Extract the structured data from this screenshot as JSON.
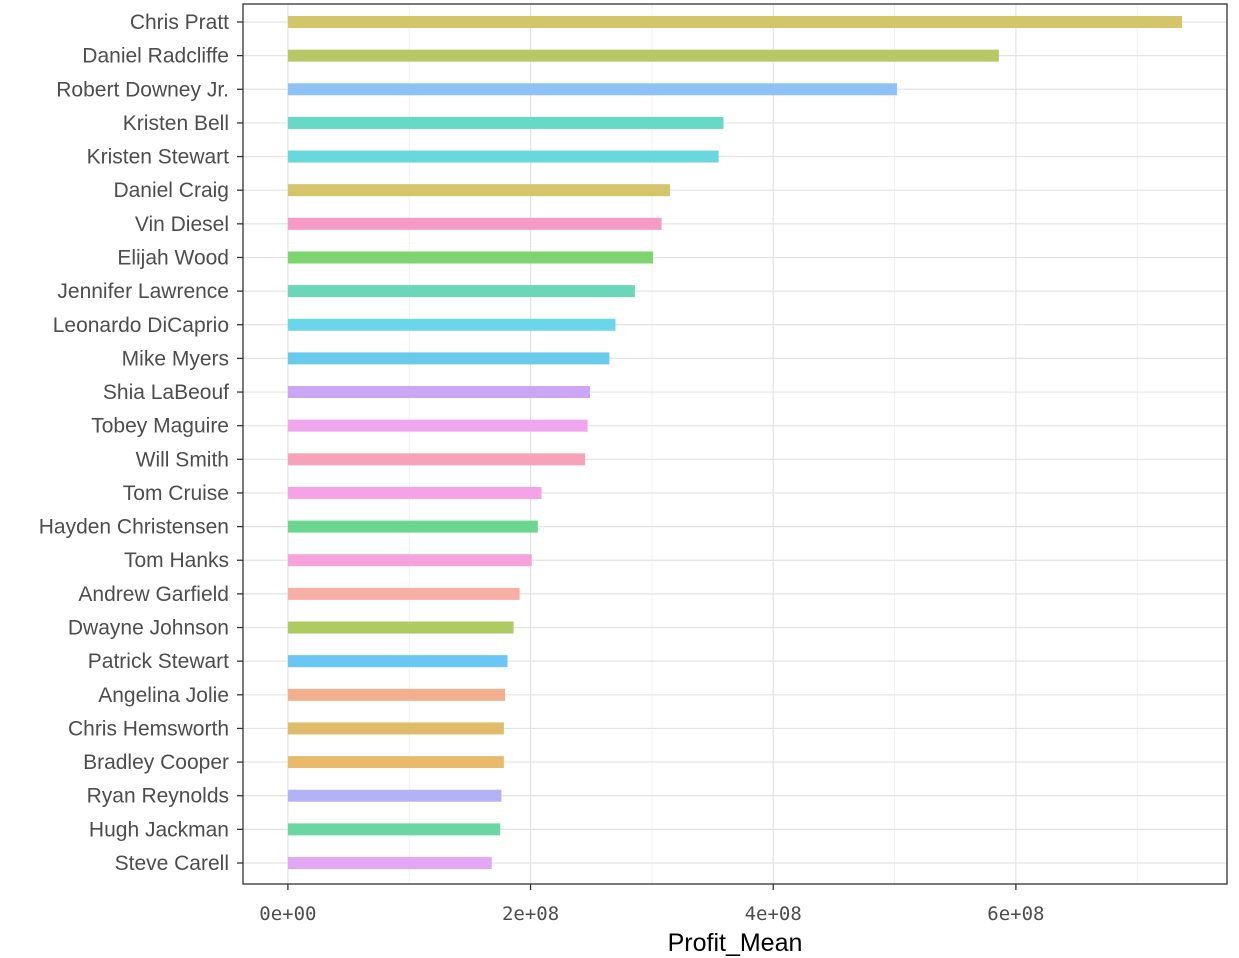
{
  "chart_data": {
    "type": "bar",
    "orientation": "horizontal",
    "title": "",
    "xlabel": "Profit_Mean",
    "ylabel": "",
    "xlim": [
      -37000000,
      774000000
    ],
    "grid": true,
    "legend": "none",
    "x_ticks": [
      {
        "value": 0,
        "label": "0e+00"
      },
      {
        "value": 200000000,
        "label": "2e+08"
      },
      {
        "value": 400000000,
        "label": "4e+08"
      },
      {
        "value": 600000000,
        "label": "6e+08"
      }
    ],
    "categories": [
      "Chris Pratt",
      "Daniel Radcliffe",
      "Robert Downey Jr.",
      "Kristen Bell",
      "Kristen Stewart",
      "Daniel Craig",
      "Vin Diesel",
      "Elijah Wood",
      "Jennifer Lawrence",
      "Leonardo DiCaprio",
      "Mike Myers",
      "Shia LaBeouf",
      "Tobey Maguire",
      "Will Smith",
      "Tom Cruise",
      "Hayden Christensen",
      "Tom Hanks",
      "Andrew Garfield",
      "Dwayne Johnson",
      "Patrick Stewart",
      "Angelina Jolie",
      "Chris Hemsworth",
      "Bradley Cooper",
      "Ryan Reynolds",
      "Hugh Jackman",
      "Steve Carell"
    ],
    "values": [
      737000000,
      586000000,
      502000000,
      359000000,
      355000000,
      315000000,
      308000000,
      301000000,
      286000000,
      270000000,
      265000000,
      249000000,
      247000000,
      245000000,
      209000000,
      206000000,
      201000000,
      191000000,
      186000000,
      181000000,
      179000000,
      178000000,
      178000000,
      176000000,
      175000000,
      168000000
    ],
    "colors": [
      "#D4C46A",
      "#B8C867",
      "#8EC1F5",
      "#68D8C8",
      "#68D8DD",
      "#D4C46A",
      "#F59BC4",
      "#7DD56F",
      "#6AD8B8",
      "#6AD6EA",
      "#68CBEC",
      "#CBA6F4",
      "#EFA6EC",
      "#F6A2B8",
      "#F6A2E6",
      "#6AD690",
      "#F6A2DC",
      "#F7AEA4",
      "#AECB62",
      "#6AC6F5",
      "#F2AF8D",
      "#E0BC6A",
      "#E9BA6C",
      "#B4B2F6",
      "#6AD7A2",
      "#E2A6F4"
    ]
  }
}
